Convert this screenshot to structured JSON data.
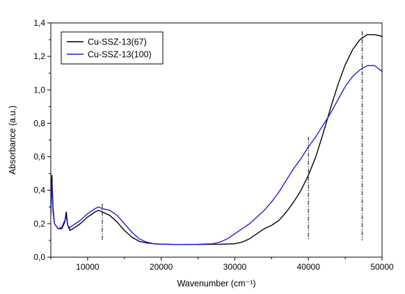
{
  "chart_data": {
    "type": "line",
    "xlabel": "Wavenumber (cm⁻¹)",
    "ylabel": "Absorbance (a.u.)",
    "xlim": [
      5000,
      50000
    ],
    "ylim": [
      0.0,
      1.4
    ],
    "x_ticks": [
      10000,
      20000,
      30000,
      40000,
      50000
    ],
    "x_tick_labels": [
      "10000",
      "20000",
      "30000",
      "40000",
      "50000"
    ],
    "y_ticks": [
      0.0,
      0.2,
      0.4,
      0.6,
      0.8,
      1.0,
      1.2,
      1.4
    ],
    "y_tick_labels": [
      "0,0",
      "0,2",
      "0,4",
      "0,6",
      "0,8",
      "1,0",
      "1,2",
      "1,4"
    ],
    "grid": false,
    "legend_position": "top-left",
    "series": [
      {
        "name": "Cu-SSZ-13(67)",
        "color": "#000000",
        "points": [
          [
            5000,
            0.3
          ],
          [
            5150,
            0.49
          ],
          [
            5300,
            0.3
          ],
          [
            5500,
            0.2
          ],
          [
            6000,
            0.17
          ],
          [
            6500,
            0.17
          ],
          [
            6900,
            0.21
          ],
          [
            7100,
            0.27
          ],
          [
            7300,
            0.19
          ],
          [
            7600,
            0.16
          ],
          [
            8000,
            0.17
          ],
          [
            9000,
            0.2
          ],
          [
            10000,
            0.24
          ],
          [
            11000,
            0.27
          ],
          [
            11500,
            0.28
          ],
          [
            12000,
            0.27
          ],
          [
            13000,
            0.25
          ],
          [
            14000,
            0.21
          ],
          [
            15000,
            0.16
          ],
          [
            16000,
            0.12
          ],
          [
            17000,
            0.095
          ],
          [
            18000,
            0.085
          ],
          [
            19000,
            0.08
          ],
          [
            20000,
            0.078
          ],
          [
            22000,
            0.076
          ],
          [
            25000,
            0.076
          ],
          [
            28000,
            0.077
          ],
          [
            30000,
            0.08
          ],
          [
            31000,
            0.09
          ],
          [
            32000,
            0.11
          ],
          [
            33000,
            0.14
          ],
          [
            34000,
            0.17
          ],
          [
            35000,
            0.19
          ],
          [
            36000,
            0.22
          ],
          [
            37000,
            0.27
          ],
          [
            38000,
            0.33
          ],
          [
            39000,
            0.4
          ],
          [
            40000,
            0.49
          ],
          [
            41000,
            0.6
          ],
          [
            42000,
            0.74
          ],
          [
            43000,
            0.89
          ],
          [
            44000,
            1.03
          ],
          [
            45000,
            1.15
          ],
          [
            46000,
            1.24
          ],
          [
            47000,
            1.3
          ],
          [
            48000,
            1.33
          ],
          [
            49000,
            1.33
          ],
          [
            50000,
            1.32
          ]
        ]
      },
      {
        "name": "Cu-SSZ-13(100)",
        "color": "#1f1fd6",
        "points": [
          [
            5000,
            0.25
          ],
          [
            5150,
            0.45
          ],
          [
            5300,
            0.27
          ],
          [
            5500,
            0.2
          ],
          [
            6000,
            0.17
          ],
          [
            6500,
            0.18
          ],
          [
            6900,
            0.22
          ],
          [
            7100,
            0.24
          ],
          [
            7300,
            0.19
          ],
          [
            7600,
            0.175
          ],
          [
            8000,
            0.19
          ],
          [
            9000,
            0.22
          ],
          [
            10000,
            0.26
          ],
          [
            11000,
            0.29
          ],
          [
            11500,
            0.3
          ],
          [
            12000,
            0.29
          ],
          [
            13000,
            0.28
          ],
          [
            14000,
            0.25
          ],
          [
            15000,
            0.2
          ],
          [
            16000,
            0.15
          ],
          [
            17000,
            0.11
          ],
          [
            18000,
            0.09
          ],
          [
            19000,
            0.08
          ],
          [
            20000,
            0.077
          ],
          [
            22000,
            0.076
          ],
          [
            25000,
            0.077
          ],
          [
            27000,
            0.08
          ],
          [
            28000,
            0.09
          ],
          [
            29000,
            0.11
          ],
          [
            30000,
            0.14
          ],
          [
            31000,
            0.17
          ],
          [
            32000,
            0.2
          ],
          [
            33000,
            0.24
          ],
          [
            34000,
            0.28
          ],
          [
            35000,
            0.33
          ],
          [
            36000,
            0.39
          ],
          [
            37000,
            0.46
          ],
          [
            38000,
            0.53
          ],
          [
            39000,
            0.59
          ],
          [
            40000,
            0.66
          ],
          [
            41000,
            0.72
          ],
          [
            42000,
            0.79
          ],
          [
            43000,
            0.86
          ],
          [
            44000,
            0.94
          ],
          [
            45000,
            1.02
          ],
          [
            46000,
            1.08
          ],
          [
            47000,
            1.12
          ],
          [
            48000,
            1.145
          ],
          [
            49000,
            1.145
          ],
          [
            50000,
            1.11
          ]
        ]
      }
    ],
    "reference_lines_x": [
      12000,
      40000,
      47300
    ]
  }
}
